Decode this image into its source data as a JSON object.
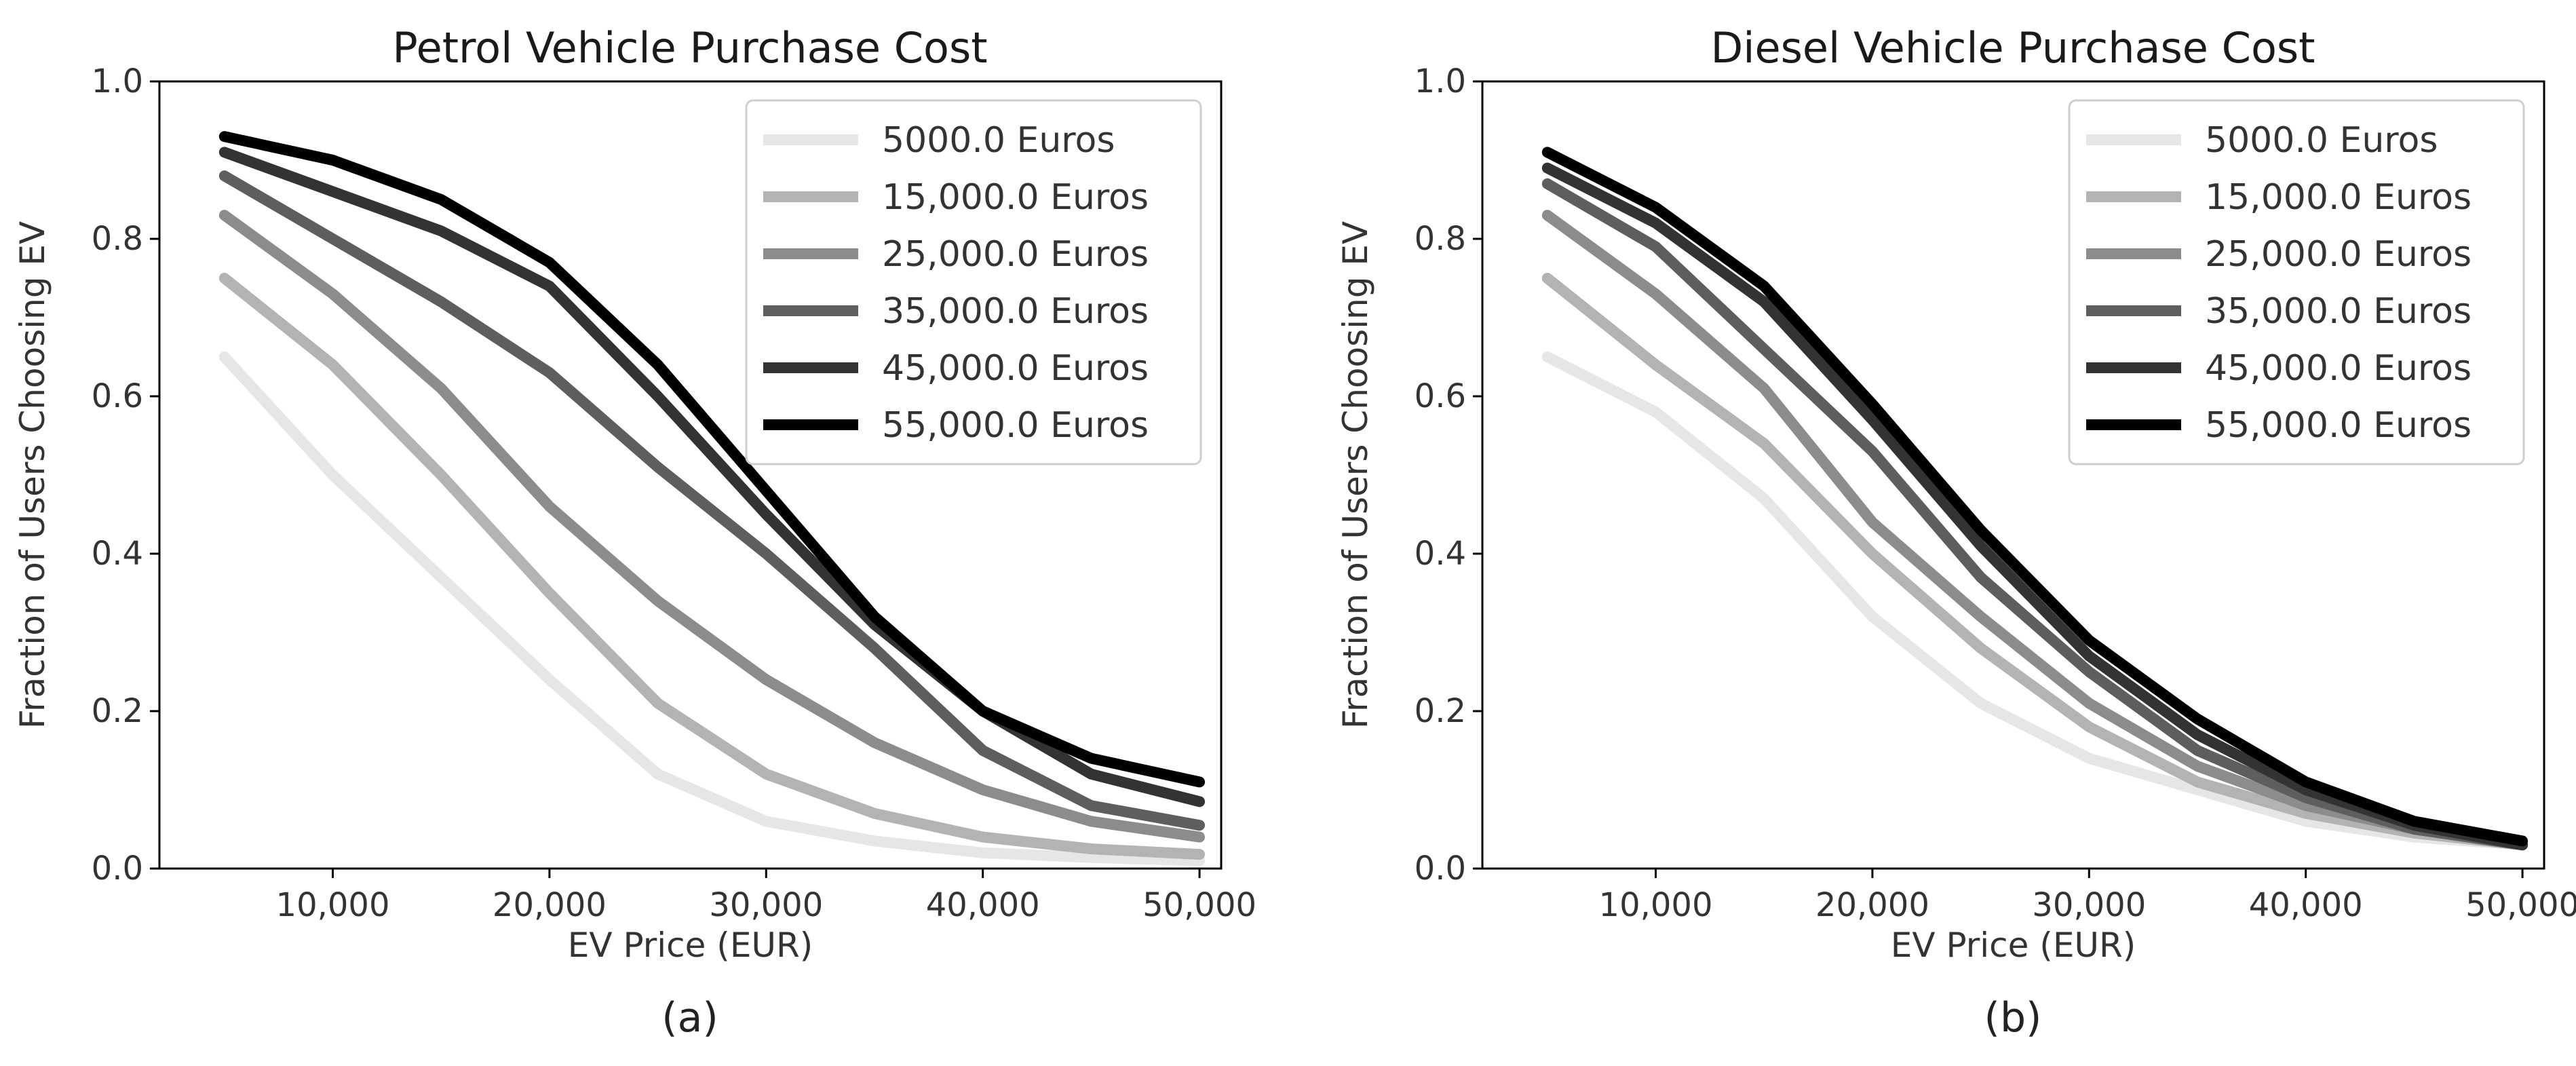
{
  "chart_data": [
    {
      "type": "line",
      "title": "Petrol Vehicle Purchase Cost",
      "xlabel": "EV Price (EUR)",
      "ylabel": "Fraction of Users Choosing EV",
      "caption": "(a)",
      "xlim": [
        2000,
        51000
      ],
      "ylim": [
        0,
        1.0
      ],
      "xticks": [
        10000,
        20000,
        30000,
        40000,
        50000
      ],
      "xtick_labels": [
        "10,000",
        "20,000",
        "30,000",
        "40,000",
        "50,000"
      ],
      "yticks": [
        0,
        0.2,
        0.4,
        0.6,
        0.8,
        1.0
      ],
      "ytick_labels": [
        "0.0",
        "0.2",
        "0.4",
        "0.6",
        "0.8",
        "1.0"
      ],
      "legend_position": "top-right",
      "x": [
        5000,
        10000,
        15000,
        20000,
        25000,
        30000,
        35000,
        40000,
        45000,
        50000
      ],
      "series": [
        {
          "name": "5000.0 Euros",
          "color": "#e6e6e6",
          "values": [
            0.65,
            0.5,
            0.37,
            0.24,
            0.12,
            0.06,
            0.035,
            0.02,
            0.014,
            0.01
          ]
        },
        {
          "name": "15,000.0 Euros",
          "color": "#b3b3b3",
          "values": [
            0.75,
            0.64,
            0.5,
            0.35,
            0.21,
            0.12,
            0.07,
            0.04,
            0.025,
            0.018
          ]
        },
        {
          "name": "25,000.0 Euros",
          "color": "#8c8c8c",
          "values": [
            0.83,
            0.73,
            0.61,
            0.46,
            0.34,
            0.24,
            0.16,
            0.1,
            0.06,
            0.04
          ]
        },
        {
          "name": "35,000.0 Euros",
          "color": "#5e5e5e",
          "values": [
            0.88,
            0.8,
            0.72,
            0.63,
            0.51,
            0.4,
            0.28,
            0.15,
            0.08,
            0.055
          ]
        },
        {
          "name": "45,000.0 Euros",
          "color": "#333333",
          "values": [
            0.91,
            0.86,
            0.81,
            0.74,
            0.6,
            0.45,
            0.31,
            0.2,
            0.12,
            0.085
          ]
        },
        {
          "name": "55,000.0 Euros",
          "color": "#000000",
          "values": [
            0.93,
            0.9,
            0.85,
            0.77,
            0.64,
            0.48,
            0.32,
            0.2,
            0.14,
            0.11
          ]
        }
      ]
    },
    {
      "type": "line",
      "title": "Diesel Vehicle Purchase Cost",
      "xlabel": "EV Price (EUR)",
      "ylabel": "Fraction of Users Choosing EV",
      "caption": "(b)",
      "xlim": [
        2000,
        51000
      ],
      "ylim": [
        0,
        1.0
      ],
      "xticks": [
        10000,
        20000,
        30000,
        40000,
        50000
      ],
      "xtick_labels": [
        "10,000",
        "20,000",
        "30,000",
        "40,000",
        "50,000"
      ],
      "yticks": [
        0,
        0.2,
        0.4,
        0.6,
        0.8,
        1.0
      ],
      "ytick_labels": [
        "0.0",
        "0.2",
        "0.4",
        "0.6",
        "0.8",
        "1.0"
      ],
      "legend_position": "top-right",
      "x": [
        5000,
        10000,
        15000,
        20000,
        25000,
        30000,
        35000,
        40000,
        45000,
        50000
      ],
      "series": [
        {
          "name": "5000.0 Euros",
          "color": "#e6e6e6",
          "values": [
            0.65,
            0.58,
            0.47,
            0.32,
            0.21,
            0.14,
            0.1,
            0.06,
            0.04,
            0.03
          ]
        },
        {
          "name": "15,000.0 Euros",
          "color": "#b3b3b3",
          "values": [
            0.75,
            0.64,
            0.54,
            0.4,
            0.28,
            0.18,
            0.11,
            0.07,
            0.045,
            0.03
          ]
        },
        {
          "name": "25,000.0 Euros",
          "color": "#8c8c8c",
          "values": [
            0.83,
            0.73,
            0.61,
            0.44,
            0.32,
            0.21,
            0.13,
            0.08,
            0.05,
            0.03
          ]
        },
        {
          "name": "35,000.0 Euros",
          "color": "#5e5e5e",
          "values": [
            0.87,
            0.79,
            0.66,
            0.53,
            0.37,
            0.25,
            0.15,
            0.09,
            0.05,
            0.03
          ]
        },
        {
          "name": "45,000.0 Euros",
          "color": "#333333",
          "values": [
            0.89,
            0.82,
            0.72,
            0.57,
            0.41,
            0.27,
            0.17,
            0.1,
            0.055,
            0.03
          ]
        },
        {
          "name": "55,000.0 Euros",
          "color": "#000000",
          "values": [
            0.91,
            0.84,
            0.74,
            0.59,
            0.43,
            0.29,
            0.19,
            0.11,
            0.06,
            0.035
          ]
        }
      ]
    }
  ]
}
